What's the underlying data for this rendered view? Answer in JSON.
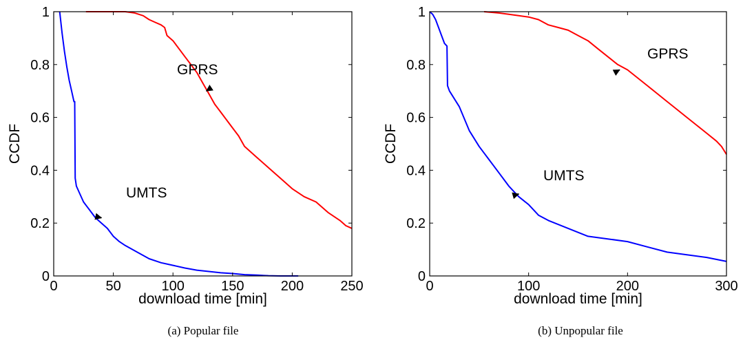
{
  "chart_data": [
    {
      "type": "line",
      "caption": "(a)  Popular file",
      "xlabel": "download time [min]",
      "ylabel": "CCDF",
      "xlim": [
        0,
        250
      ],
      "ylim": [
        0,
        1
      ],
      "xticks": [
        0,
        50,
        100,
        150,
        200,
        250
      ],
      "yticks": [
        0,
        0.2,
        0.4,
        0.6,
        0.8,
        1
      ],
      "ytick_labels": [
        "0",
        "0.2",
        "0.4",
        "0.6",
        "0.8",
        "1"
      ],
      "series": [
        {
          "name": "GPRS",
          "color": "#ff0000",
          "x": [
            27,
            40,
            60,
            68,
            75,
            80,
            85,
            90,
            93,
            95,
            100,
            105,
            110,
            115,
            120,
            125,
            130,
            135,
            140,
            145,
            150,
            155,
            160,
            170,
            180,
            190,
            200,
            210,
            220,
            230,
            240,
            245,
            250
          ],
          "y": [
            1.0,
            1.0,
            1.0,
            0.995,
            0.985,
            0.97,
            0.96,
            0.95,
            0.94,
            0.91,
            0.89,
            0.86,
            0.83,
            0.8,
            0.77,
            0.73,
            0.69,
            0.65,
            0.62,
            0.59,
            0.56,
            0.53,
            0.49,
            0.45,
            0.41,
            0.37,
            0.33,
            0.3,
            0.28,
            0.24,
            0.21,
            0.19,
            0.18
          ]
        },
        {
          "name": "UMTS",
          "color": "#0000ff",
          "x": [
            5,
            7,
            9,
            11,
            13,
            15,
            17,
            17.6,
            18,
            19,
            22,
            25,
            30,
            35,
            40,
            45,
            50,
            55,
            60,
            70,
            80,
            90,
            100,
            110,
            120,
            130,
            140,
            150,
            160,
            170,
            180,
            190,
            200,
            205
          ],
          "y": [
            1.0,
            0.92,
            0.85,
            0.79,
            0.74,
            0.7,
            0.66,
            0.66,
            0.37,
            0.34,
            0.31,
            0.28,
            0.25,
            0.22,
            0.2,
            0.18,
            0.15,
            0.13,
            0.115,
            0.09,
            0.065,
            0.05,
            0.04,
            0.03,
            0.022,
            0.017,
            0.012,
            0.009,
            0.005,
            0.003,
            0.001,
            0.0,
            0.0,
            0.0
          ]
        }
      ],
      "annotations": [
        {
          "text": "GPRS",
          "x": 128,
          "y": 0.7
        },
        {
          "text": "UMTS",
          "x": 40,
          "y": 0.22
        }
      ]
    },
    {
      "type": "line",
      "caption": "(b)  Unpopular file",
      "xlabel": "download time [min]",
      "ylabel": "CCDF",
      "xlim": [
        0,
        300
      ],
      "ylim": [
        0,
        1
      ],
      "xticks": [
        0,
        100,
        200,
        300
      ],
      "yticks": [
        0,
        0.2,
        0.4,
        0.6,
        0.8,
        1
      ],
      "ytick_labels": [
        "0",
        "0.2",
        "0.4",
        "0.6",
        "0.8",
        "1"
      ],
      "series": [
        {
          "name": "GPRS",
          "color": "#ff0000",
          "x": [
            55,
            70,
            80,
            90,
            100,
            110,
            115,
            120,
            130,
            140,
            150,
            160,
            170,
            180,
            190,
            200,
            210,
            220,
            230,
            240,
            250,
            260,
            270,
            280,
            290,
            295,
            300
          ],
          "y": [
            1.0,
            0.995,
            0.99,
            0.985,
            0.98,
            0.97,
            0.96,
            0.95,
            0.94,
            0.93,
            0.91,
            0.89,
            0.86,
            0.83,
            0.8,
            0.78,
            0.75,
            0.72,
            0.69,
            0.66,
            0.63,
            0.6,
            0.57,
            0.54,
            0.51,
            0.49,
            0.46
          ]
        },
        {
          "name": "UMTS",
          "color": "#0000ff",
          "x": [
            0,
            3,
            6,
            9,
            12,
            15,
            17.5,
            18,
            20,
            25,
            30,
            40,
            50,
            60,
            70,
            80,
            90,
            100,
            110,
            120,
            140,
            160,
            180,
            200,
            220,
            240,
            260,
            280,
            300
          ],
          "y": [
            1.0,
            0.99,
            0.97,
            0.94,
            0.91,
            0.88,
            0.87,
            0.72,
            0.7,
            0.67,
            0.64,
            0.55,
            0.49,
            0.44,
            0.39,
            0.34,
            0.3,
            0.27,
            0.23,
            0.21,
            0.18,
            0.15,
            0.14,
            0.13,
            0.11,
            0.09,
            0.08,
            0.07,
            0.055
          ]
        }
      ],
      "annotations": [
        {
          "text": "GPRS",
          "x": 192,
          "y": 0.78
        },
        {
          "text": "UMTS",
          "x": 90,
          "y": 0.31
        }
      ]
    }
  ]
}
